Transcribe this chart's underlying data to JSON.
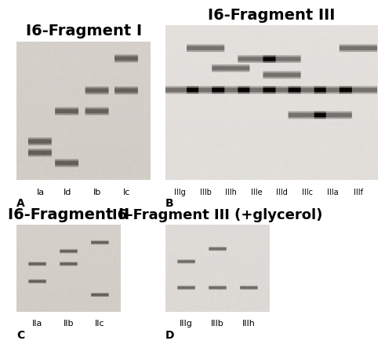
{
  "background_color": "#ffffff",
  "gel_bg_A": [
    210,
    205,
    198
  ],
  "gel_bg_B": [
    225,
    222,
    218
  ],
  "gel_bg_C": [
    210,
    205,
    198
  ],
  "gel_bg_D": [
    220,
    217,
    213
  ],
  "band_dark": [
    40,
    38,
    35
  ],
  "band_mid": [
    90,
    87,
    83
  ],
  "title_A": "I6-Fragment I",
  "title_B": "I6-Fragment III",
  "title_C": "I6-Fragment II",
  "title_D": "I6-Fragment III (+glycerol)",
  "label_A": "A",
  "label_B": "B",
  "label_C": "C",
  "label_D": "D",
  "lanes_A": [
    "Ia",
    "Id",
    "Ib",
    "Ic"
  ],
  "lanes_B": [
    "IIIg",
    "IIIb",
    "IIIh",
    "IIIe",
    "IIId",
    "IIIc",
    "IIIa",
    "IIIf"
  ],
  "lanes_C": [
    "IIa",
    "IIb",
    "IIc"
  ],
  "lanes_D": [
    "IIIg",
    "IIIb",
    "IIIh"
  ],
  "title_fontsize": 14,
  "label_fontsize": 10,
  "lane_fontsize": 8
}
